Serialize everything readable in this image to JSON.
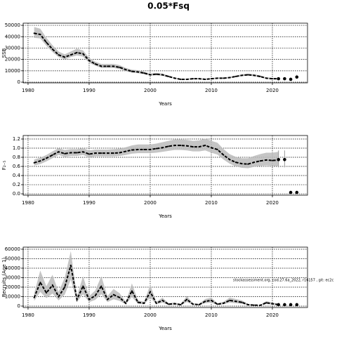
{
  "title": "0.05*Fsq",
  "chart_data": [
    {
      "type": "line",
      "y_label": "SSB",
      "x_label": "Years",
      "color": "#000000",
      "band_color": "#bbbbbb",
      "grid": true,
      "x": [
        1981,
        1982,
        1983,
        1984,
        1985,
        1986,
        1987,
        1988,
        1989,
        1990,
        1991,
        1992,
        1993,
        1994,
        1995,
        1996,
        1997,
        1998,
        1999,
        2000,
        2001,
        2002,
        2003,
        2004,
        2005,
        2006,
        2007,
        2008,
        2009,
        2010,
        2011,
        2012,
        2013,
        2014,
        2015,
        2016,
        2017,
        2018,
        2019,
        2020,
        2021
      ],
      "values": [
        43000,
        42000,
        35000,
        29000,
        24000,
        22000,
        24000,
        26000,
        25000,
        19000,
        16000,
        14000,
        14000,
        14000,
        13000,
        11000,
        9500,
        9000,
        8000,
        6500,
        7000,
        6500,
        5000,
        3500,
        2500,
        2500,
        3000,
        3000,
        2500,
        3000,
        3500,
        3500,
        4000,
        5000,
        6000,
        6500,
        6000,
        5000,
        3500,
        3000,
        3000
      ],
      "low": [
        39000,
        38500,
        32000,
        26500,
        22000,
        20000,
        22000,
        23500,
        22500,
        17000,
        14500,
        12500,
        12500,
        12500,
        11500,
        9700,
        8300,
        7900,
        7000,
        5700,
        6100,
        5600,
        4300,
        3000,
        2100,
        2100,
        2500,
        2500,
        2100,
        2600,
        3000,
        3000,
        3500,
        4400,
        5300,
        5700,
        5200,
        4300,
        3000,
        2500,
        2400
      ],
      "high": [
        48500,
        47000,
        39000,
        32500,
        27000,
        24500,
        27000,
        29500,
        28000,
        21500,
        18000,
        16000,
        16000,
        16000,
        15000,
        12500,
        11000,
        10500,
        9200,
        7500,
        8100,
        7600,
        5800,
        4100,
        3000,
        3000,
        3600,
        3600,
        3000,
        3500,
        4100,
        4100,
        4600,
        5700,
        6900,
        7500,
        7000,
        5900,
        4200,
        3700,
        3700
      ],
      "forecast_x": [
        2021,
        2022,
        2023,
        2024
      ],
      "forecast_values": [
        3000,
        3000,
        2500,
        4500
      ],
      "forecast_low": [
        2500,
        2500,
        2000,
        3000
      ],
      "forecast_high": [
        3700,
        3700,
        3300,
        6500
      ],
      "xlim": [
        1979.2,
        2025.75
      ],
      "xticks": [
        1980,
        1990,
        2000,
        2010,
        2020
      ],
      "ylim": [
        -600,
        51900
      ],
      "yticks": [
        0,
        10000,
        20000,
        30000,
        40000,
        50000
      ]
    },
    {
      "type": "line",
      "y_label": "F₂₋₅",
      "x_label": "Years",
      "color": "#000000",
      "band_color": "#bbbbbb",
      "grid": true,
      "x": [
        1981,
        1982,
        1983,
        1984,
        1985,
        1986,
        1987,
        1988,
        1989,
        1990,
        1991,
        1992,
        1993,
        1994,
        1995,
        1996,
        1997,
        1998,
        1999,
        2000,
        2001,
        2002,
        2003,
        2004,
        2005,
        2006,
        2007,
        2008,
        2009,
        2010,
        2011,
        2012,
        2013,
        2014,
        2015,
        2016,
        2017,
        2018,
        2019,
        2020,
        2021
      ],
      "values": [
        0.68,
        0.72,
        0.78,
        0.85,
        0.92,
        0.88,
        0.9,
        0.9,
        0.92,
        0.87,
        0.89,
        0.89,
        0.89,
        0.89,
        0.9,
        0.93,
        0.96,
        0.97,
        0.97,
        0.97,
        0.99,
        1.01,
        1.04,
        1.06,
        1.06,
        1.05,
        1.03,
        1.03,
        1.06,
        1.01,
        0.97,
        0.85,
        0.75,
        0.69,
        0.66,
        0.65,
        0.69,
        0.72,
        0.74,
        0.73,
        0.74
      ],
      "low": [
        0.62,
        0.65,
        0.71,
        0.78,
        0.85,
        0.81,
        0.83,
        0.83,
        0.85,
        0.8,
        0.82,
        0.82,
        0.82,
        0.82,
        0.83,
        0.85,
        0.88,
        0.89,
        0.89,
        0.89,
        0.9,
        0.92,
        0.94,
        0.96,
        0.96,
        0.95,
        0.93,
        0.93,
        0.95,
        0.9,
        0.86,
        0.75,
        0.66,
        0.6,
        0.57,
        0.56,
        0.59,
        0.61,
        0.62,
        0.61,
        0.6
      ],
      "high": [
        0.75,
        0.79,
        0.85,
        0.93,
        1.0,
        0.96,
        0.98,
        0.98,
        1.0,
        0.95,
        0.97,
        0.97,
        0.97,
        0.98,
        0.99,
        1.02,
        1.06,
        1.08,
        1.08,
        1.08,
        1.1,
        1.13,
        1.16,
        1.19,
        1.19,
        1.18,
        1.16,
        1.17,
        1.21,
        1.16,
        1.12,
        0.98,
        0.87,
        0.81,
        0.78,
        0.78,
        0.83,
        0.87,
        0.9,
        0.9,
        0.92
      ],
      "forecast_x": [
        2021,
        2022,
        2023,
        2024
      ],
      "forecast_values": [
        0.75,
        0.75,
        0.03,
        0.03
      ],
      "forecast_low": [
        0.58,
        0.58,
        0.01,
        0.01
      ],
      "forecast_high": [
        0.95,
        0.95,
        0.05,
        0.05
      ],
      "xlim": [
        1979.2,
        2025.75
      ],
      "xticks": [
        1980,
        1990,
        2000,
        2010,
        2020
      ],
      "ylim": [
        -0.03,
        1.277
      ],
      "yticks": [
        {
          "value": 0,
          "label": "0.0"
        },
        0.2,
        0.4,
        0.6,
        0.8,
        {
          "value": 1,
          "label": "1.0"
        },
        1.2
      ]
    },
    {
      "type": "line",
      "y_label": "Recruits (Age 1)",
      "x_label": "Years",
      "color": "#000000",
      "band_color": "#bbbbbb",
      "grid": true,
      "annotation": "stockassessment.org, cod.27.6a_2022, r16157 , git: ec2c",
      "x": [
        1981,
        1982,
        1983,
        1984,
        1985,
        1986,
        1987,
        1988,
        1989,
        1990,
        1991,
        1992,
        1993,
        1994,
        1995,
        1996,
        1997,
        1998,
        1999,
        2000,
        2001,
        2002,
        2003,
        2004,
        2005,
        2006,
        2007,
        2008,
        2009,
        2010,
        2011,
        2012,
        2013,
        2014,
        2015,
        2016,
        2017,
        2018,
        2019,
        2020,
        2021
      ],
      "values": [
        9000,
        25000,
        14000,
        22000,
        10000,
        20000,
        43000,
        7000,
        21000,
        7000,
        11000,
        21000,
        7000,
        12000,
        9000,
        3000,
        16000,
        4000,
        3000,
        15000,
        3000,
        6000,
        2000,
        2500,
        1500,
        7000,
        2000,
        1500,
        5000,
        6000,
        2000,
        3000,
        6000,
        5000,
        4000,
        1500,
        1000,
        800,
        3500,
        2500,
        1500
      ],
      "low": [
        5400,
        15000,
        8400,
        13200,
        6000,
        12000,
        28000,
        4200,
        12600,
        4200,
        6600,
        12600,
        4200,
        7200,
        5400,
        1800,
        9600,
        2400,
        1800,
        9000,
        1800,
        3600,
        1200,
        1500,
        900,
        4200,
        1200,
        900,
        3000,
        3600,
        1200,
        1800,
        3600,
        3000,
        2400,
        900,
        600,
        480,
        2100,
        1500,
        900
      ],
      "high": [
        13500,
        37500,
        21000,
        33000,
        15000,
        30000,
        58000,
        10500,
        31500,
        10500,
        16500,
        31500,
        10500,
        18000,
        13500,
        4500,
        24000,
        6000,
        4500,
        22500,
        4500,
        9000,
        3000,
        3750,
        2250,
        10500,
        3000,
        2250,
        7500,
        9000,
        3000,
        4500,
        9000,
        7500,
        6000,
        2250,
        1500,
        1200,
        5250,
        3750,
        2250
      ],
      "forecast_x": [
        2021,
        2022,
        2023,
        2024
      ],
      "forecast_values": [
        1500,
        1500,
        1500,
        1500
      ],
      "forecast_low": [
        900,
        900,
        900,
        900
      ],
      "forecast_high": [
        2250,
        2250,
        2250,
        2250
      ],
      "xlim": [
        1979.2,
        2025.75
      ],
      "xticks": [
        1980,
        1990,
        2000,
        2010,
        2020
      ],
      "ylim": [
        -1500,
        62200
      ],
      "yticks": [
        0,
        10000,
        20000,
        30000,
        40000,
        50000,
        60000
      ]
    }
  ]
}
